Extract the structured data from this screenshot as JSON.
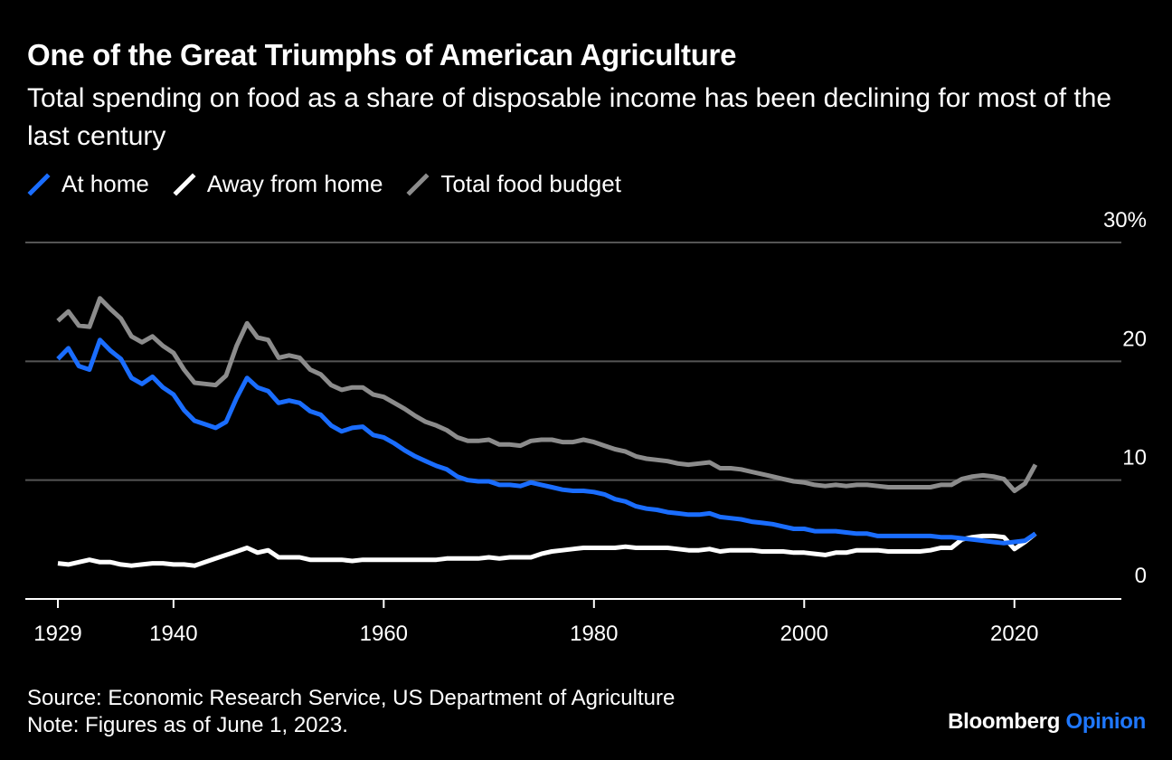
{
  "title": "One of the Great Triumphs of American Agriculture",
  "subtitle": "Total spending on food as a share of disposable income has been declining for most of the last century",
  "source": "Source: Economic Research Service, US Department of Agriculture",
  "note": "Note: Figures as of June 1, 2023.",
  "brand": {
    "main": "Bloomberg",
    "sub": "Opinion"
  },
  "colors": {
    "background": "#000000",
    "at_home": "#1a6dff",
    "away": "#ffffff",
    "total": "#8c8c8c",
    "grid": "#555555"
  },
  "chart_data": {
    "type": "line",
    "xlim": [
      1929,
      2022
    ],
    "ylim": [
      0,
      30
    ],
    "x_ticks": [
      "1929",
      "1940",
      "1960",
      "1980",
      "2000",
      "2020"
    ],
    "y_ticks": [
      "0",
      "10",
      "20",
      "30%"
    ],
    "legend_position": "top-left",
    "grid": true,
    "x": [
      1929,
      1930,
      1931,
      1932,
      1933,
      1934,
      1935,
      1936,
      1937,
      1938,
      1939,
      1940,
      1941,
      1942,
      1943,
      1944,
      1945,
      1946,
      1947,
      1948,
      1949,
      1950,
      1951,
      1952,
      1953,
      1954,
      1955,
      1956,
      1957,
      1958,
      1959,
      1960,
      1961,
      1962,
      1963,
      1964,
      1965,
      1966,
      1967,
      1968,
      1969,
      1970,
      1971,
      1972,
      1973,
      1974,
      1975,
      1976,
      1977,
      1978,
      1979,
      1980,
      1981,
      1982,
      1983,
      1984,
      1985,
      1986,
      1987,
      1988,
      1989,
      1990,
      1991,
      1992,
      1993,
      1994,
      1995,
      1996,
      1997,
      1998,
      1999,
      2000,
      2001,
      2002,
      2003,
      2004,
      2005,
      2006,
      2007,
      2008,
      2009,
      2010,
      2011,
      2012,
      2013,
      2014,
      2015,
      2016,
      2017,
      2018,
      2019,
      2020,
      2021,
      2022
    ],
    "series": [
      {
        "name": "At home",
        "values": [
          20.2,
          21.1,
          19.6,
          19.3,
          21.8,
          20.9,
          20.2,
          18.6,
          18.1,
          18.7,
          17.8,
          17.2,
          15.9,
          15.0,
          14.7,
          14.4,
          14.9,
          16.9,
          18.6,
          17.8,
          17.5,
          16.5,
          16.7,
          16.5,
          15.8,
          15.5,
          14.6,
          14.1,
          14.4,
          14.5,
          13.8,
          13.6,
          13.1,
          12.5,
          12.0,
          11.6,
          11.2,
          10.9,
          10.3,
          10.0,
          9.9,
          9.9,
          9.6,
          9.6,
          9.5,
          9.8,
          9.6,
          9.4,
          9.2,
          9.1,
          9.1,
          9.0,
          8.8,
          8.4,
          8.2,
          7.8,
          7.6,
          7.5,
          7.3,
          7.2,
          7.1,
          7.1,
          7.2,
          6.9,
          6.8,
          6.7,
          6.5,
          6.4,
          6.3,
          6.1,
          5.9,
          5.9,
          5.7,
          5.7,
          5.7,
          5.6,
          5.5,
          5.5,
          5.3,
          5.3,
          5.3,
          5.3,
          5.3,
          5.3,
          5.2,
          5.2,
          5.1,
          5.0,
          4.9,
          4.8,
          4.7,
          4.8,
          4.9,
          5.5
        ]
      },
      {
        "name": "Away from home",
        "values": [
          3.0,
          2.9,
          3.1,
          3.3,
          3.1,
          3.1,
          2.9,
          2.8,
          2.9,
          3.0,
          3.0,
          2.9,
          2.9,
          2.8,
          3.1,
          3.4,
          3.7,
          4.0,
          4.3,
          3.9,
          4.1,
          3.5,
          3.5,
          3.5,
          3.3,
          3.3,
          3.3,
          3.3,
          3.2,
          3.3,
          3.3,
          3.3,
          3.3,
          3.3,
          3.3,
          3.3,
          3.3,
          3.4,
          3.4,
          3.4,
          3.4,
          3.5,
          3.4,
          3.5,
          3.5,
          3.5,
          3.8,
          4.0,
          4.1,
          4.2,
          4.3,
          4.3,
          4.3,
          4.3,
          4.4,
          4.3,
          4.3,
          4.3,
          4.3,
          4.2,
          4.1,
          4.1,
          4.2,
          4.0,
          4.1,
          4.1,
          4.1,
          4.0,
          4.0,
          4.0,
          3.9,
          3.9,
          3.8,
          3.7,
          3.9,
          3.9,
          4.1,
          4.1,
          4.1,
          4.0,
          4.0,
          4.0,
          4.0,
          4.1,
          4.3,
          4.3,
          5.0,
          5.2,
          5.3,
          5.3,
          5.2,
          4.2,
          4.8,
          5.5
        ]
      },
      {
        "name": "Total food budget",
        "values": [
          23.4,
          24.2,
          23.0,
          22.9,
          25.3,
          24.4,
          23.6,
          22.1,
          21.6,
          22.1,
          21.3,
          20.7,
          19.3,
          18.2,
          18.1,
          18.0,
          18.8,
          21.3,
          23.2,
          22.0,
          21.8,
          20.3,
          20.5,
          20.3,
          19.3,
          18.9,
          18.0,
          17.6,
          17.8,
          17.8,
          17.2,
          17.0,
          16.5,
          16.0,
          15.4,
          14.9,
          14.6,
          14.2,
          13.6,
          13.3,
          13.3,
          13.4,
          13.0,
          13.0,
          12.9,
          13.3,
          13.4,
          13.4,
          13.2,
          13.2,
          13.4,
          13.2,
          12.9,
          12.6,
          12.4,
          12.0,
          11.8,
          11.7,
          11.6,
          11.4,
          11.3,
          11.4,
          11.5,
          11.0,
          11.0,
          10.9,
          10.7,
          10.5,
          10.3,
          10.1,
          9.9,
          9.8,
          9.6,
          9.5,
          9.6,
          9.5,
          9.6,
          9.6,
          9.5,
          9.4,
          9.4,
          9.4,
          9.4,
          9.4,
          9.6,
          9.6,
          10.1,
          10.3,
          10.4,
          10.3,
          10.1,
          9.1,
          9.7,
          11.3
        ]
      }
    ]
  }
}
